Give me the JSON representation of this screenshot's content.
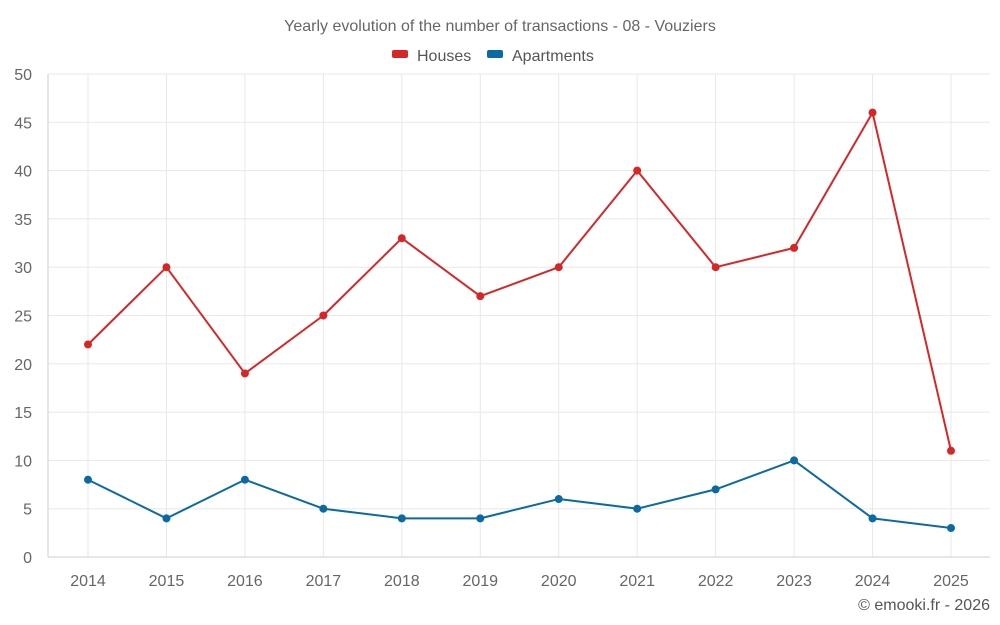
{
  "chart_data": {
    "type": "line",
    "title": "Yearly evolution of the number of transactions - 08 - Vouziers",
    "categories": [
      "2014",
      "2015",
      "2016",
      "2017",
      "2018",
      "2019",
      "2020",
      "2021",
      "2022",
      "2023",
      "2024",
      "2025"
    ],
    "series": [
      {
        "name": "Houses",
        "color": "#d62728",
        "values": [
          22,
          30,
          19,
          25,
          33,
          27,
          30,
          40,
          30,
          32,
          46,
          11
        ]
      },
      {
        "name": "Apartments",
        "color": "#0b6aa2",
        "values": [
          8,
          4,
          8,
          5,
          4,
          4,
          6,
          5,
          7,
          10,
          4,
          3
        ]
      }
    ],
    "ylim": [
      0,
      50
    ],
    "yticks": [
      0,
      5,
      10,
      15,
      20,
      25,
      30,
      35,
      40,
      45,
      50
    ],
    "grid": true,
    "legend_position": "top-center",
    "copyright": "© emooki.fr - 2026"
  }
}
